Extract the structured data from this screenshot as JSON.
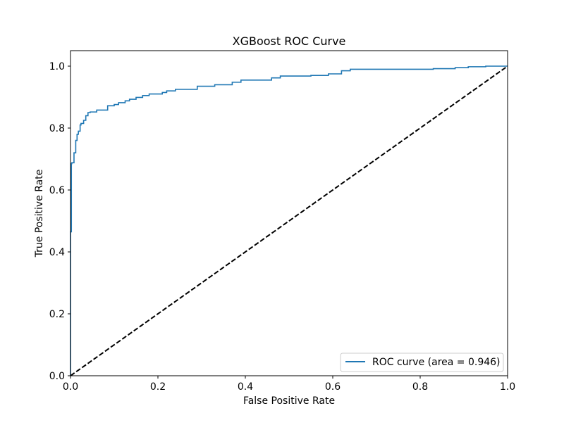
{
  "chart_data": {
    "type": "line",
    "title": "XGBoost ROC Curve",
    "xlabel": "False Positive Rate",
    "ylabel": "True Positive Rate",
    "xlim": [
      0.0,
      1.0
    ],
    "ylim": [
      0.0,
      1.05
    ],
    "grid": false,
    "legend_position": "lower-right",
    "x_ticks": [
      {
        "value": 0.0,
        "label": "0.0"
      },
      {
        "value": 0.2,
        "label": "0.2"
      },
      {
        "value": 0.4,
        "label": "0.4"
      },
      {
        "value": 0.6,
        "label": "0.6"
      },
      {
        "value": 0.8,
        "label": "0.8"
      },
      {
        "value": 1.0,
        "label": "1.0"
      }
    ],
    "y_ticks": [
      {
        "value": 0.0,
        "label": "0.0"
      },
      {
        "value": 0.2,
        "label": "0.2"
      },
      {
        "value": 0.4,
        "label": "0.4"
      },
      {
        "value": 0.6,
        "label": "0.6"
      },
      {
        "value": 0.8,
        "label": "0.8"
      },
      {
        "value": 1.0,
        "label": "1.0"
      }
    ],
    "series": [
      {
        "name": "ROC curve (area = 0.946)",
        "color": "#1f77b4",
        "style": "solid",
        "x": [
          0.0,
          0.0,
          0.002,
          0.002,
          0.003,
          0.003,
          0.008,
          0.008,
          0.012,
          0.012,
          0.015,
          0.015,
          0.018,
          0.018,
          0.022,
          0.022,
          0.024,
          0.024,
          0.03,
          0.03,
          0.035,
          0.035,
          0.04,
          0.04,
          0.045,
          0.045,
          0.06,
          0.06,
          0.085,
          0.085,
          0.1,
          0.1,
          0.11,
          0.11,
          0.125,
          0.125,
          0.135,
          0.135,
          0.15,
          0.15,
          0.165,
          0.165,
          0.18,
          0.18,
          0.21,
          0.21,
          0.22,
          0.22,
          0.24,
          0.24,
          0.29,
          0.29,
          0.33,
          0.33,
          0.37,
          0.37,
          0.39,
          0.39,
          0.46,
          0.46,
          0.48,
          0.48,
          0.55,
          0.55,
          0.59,
          0.59,
          0.62,
          0.62,
          0.64,
          0.64,
          0.83,
          0.83,
          0.88,
          0.88,
          0.91,
          0.91,
          0.95,
          0.95,
          1.0
        ],
        "y": [
          0.0,
          0.465,
          0.465,
          0.685,
          0.685,
          0.688,
          0.688,
          0.72,
          0.72,
          0.76,
          0.76,
          0.78,
          0.78,
          0.79,
          0.79,
          0.81,
          0.81,
          0.815,
          0.815,
          0.825,
          0.825,
          0.84,
          0.84,
          0.85,
          0.85,
          0.852,
          0.852,
          0.858,
          0.858,
          0.872,
          0.872,
          0.876,
          0.876,
          0.882,
          0.882,
          0.888,
          0.888,
          0.893,
          0.893,
          0.899,
          0.899,
          0.905,
          0.905,
          0.91,
          0.91,
          0.915,
          0.915,
          0.92,
          0.92,
          0.925,
          0.925,
          0.935,
          0.935,
          0.94,
          0.94,
          0.948,
          0.948,
          0.955,
          0.955,
          0.962,
          0.962,
          0.968,
          0.968,
          0.97,
          0.97,
          0.975,
          0.975,
          0.985,
          0.985,
          0.99,
          0.99,
          0.992,
          0.992,
          0.995,
          0.995,
          0.998,
          0.998,
          1.0,
          1.0
        ]
      },
      {
        "color": "#000000",
        "style": "dashed",
        "x": [
          0.0,
          1.0
        ],
        "y": [
          0.0,
          1.0
        ]
      }
    ]
  }
}
